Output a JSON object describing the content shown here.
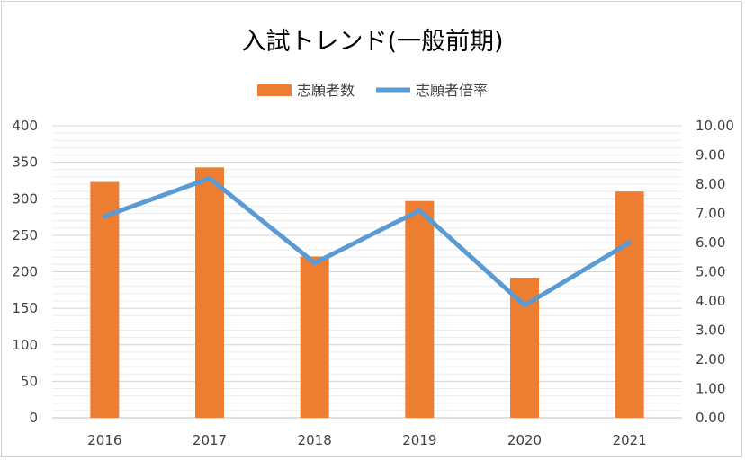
{
  "chart_data": {
    "type": "bar+line",
    "title": "入試トレンド(一般前期)",
    "categories": [
      "2016",
      "2017",
      "2018",
      "2019",
      "2020",
      "2021"
    ],
    "series": [
      {
        "name": "志願者数",
        "type": "bar",
        "axis": "left",
        "color": "#ED7D31",
        "values": [
          323,
          343,
          221,
          297,
          192,
          310
        ]
      },
      {
        "name": "志願者倍率",
        "type": "line",
        "axis": "right",
        "color": "#5B9BD5",
        "values": [
          6.9,
          8.2,
          5.3,
          7.1,
          3.85,
          6.0
        ]
      }
    ],
    "y_left": {
      "min": 0,
      "max": 400,
      "step": 50,
      "ticks": [
        "0",
        "50",
        "100",
        "150",
        "200",
        "250",
        "300",
        "350",
        "400"
      ]
    },
    "y_right": {
      "min": 0,
      "max": 10,
      "step": 1,
      "ticks": [
        "0.00",
        "1.00",
        "2.00",
        "3.00",
        "4.00",
        "5.00",
        "6.00",
        "7.00",
        "8.00",
        "9.00",
        "10.00"
      ]
    },
    "grid": true,
    "legend": "top"
  }
}
